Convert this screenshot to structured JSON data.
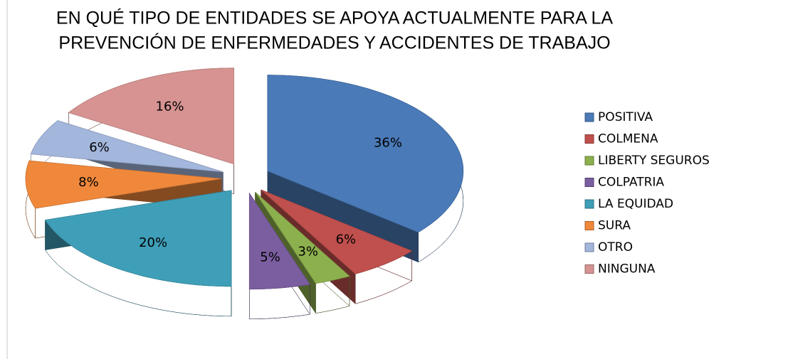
{
  "chart_data": {
    "type": "pie3d",
    "title": [
      "EN QUÉ TIPO DE ENTIDADES SE APOYA ACTUALMENTE PARA LA",
      "PREVENCIÓN DE ENFERMEDADES Y ACCIDENTES DE TRABAJO"
    ],
    "categories": [
      "POSITIVA",
      "COLMENA",
      "LIBERTY SEGUROS",
      "COLPATRIA",
      "LA EQUIDAD",
      "SURA",
      "OTRO",
      "NINGUNA"
    ],
    "values": [
      36,
      6,
      3,
      5,
      20,
      8,
      6,
      16
    ],
    "value_labels": [
      "36%",
      "6%",
      "3%",
      "5%",
      "20%",
      "8%",
      "6%",
      "16%"
    ],
    "colors": [
      "#4a7ab8",
      "#c0504d",
      "#8db04e",
      "#7b5ea0",
      "#3f9fb8",
      "#f0883c",
      "#a3b6dc",
      "#d69391"
    ],
    "legend": "right"
  }
}
